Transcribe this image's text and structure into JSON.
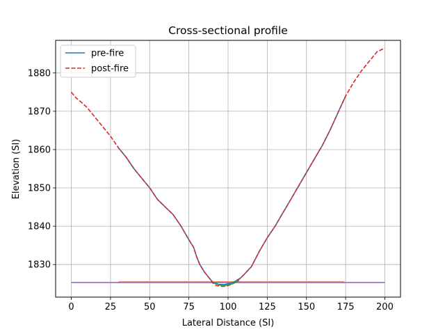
{
  "chart_data": {
    "type": "line",
    "title": "Cross-sectional profile",
    "xlabel": "Lateral Distance (SI)",
    "ylabel": "Elevation (SI)",
    "xlim": [
      -10,
      210
    ],
    "ylim": [
      1821.5,
      1888.5
    ],
    "xticks": [
      0,
      25,
      50,
      75,
      100,
      125,
      150,
      175,
      200
    ],
    "yticks": [
      1830,
      1840,
      1850,
      1860,
      1870,
      1880
    ],
    "grid": true,
    "legend_position": "top-left",
    "series": [
      {
        "name": "pre-fire",
        "color": "#1f77b4",
        "dash": "solid",
        "x": [
          30,
          35,
          40,
          45,
          50,
          55,
          60,
          65,
          70,
          75,
          78,
          80,
          82,
          85,
          88,
          90,
          92,
          94,
          96,
          98,
          100,
          102,
          104,
          106,
          108,
          110,
          115,
          120,
          125,
          130,
          135,
          140,
          145,
          150,
          155,
          160,
          165,
          170,
          175
        ],
        "y": [
          1860.5,
          1858,
          1855,
          1852.5,
          1850,
          1847,
          1845,
          1843,
          1840,
          1836.5,
          1834.5,
          1832,
          1830,
          1828,
          1826.5,
          1825.5,
          1825,
          1824.8,
          1824.8,
          1824.8,
          1825,
          1825.2,
          1825.5,
          1826,
          1826.5,
          1827.3,
          1829.5,
          1833.5,
          1837,
          1840,
          1843.5,
          1847,
          1850.5,
          1854,
          1857.5,
          1861,
          1865,
          1869.5,
          1874
        ]
      },
      {
        "name": "post-fire",
        "color": "#d62728",
        "dash": "dashed",
        "x": [
          0,
          3,
          6,
          10,
          15,
          20,
          25,
          30,
          35,
          40,
          45,
          50,
          55,
          60,
          65,
          70,
          75,
          78,
          80,
          82,
          85,
          88,
          90,
          92,
          94,
          96,
          98,
          100,
          102,
          104,
          106,
          108,
          110,
          115,
          120,
          125,
          130,
          135,
          140,
          145,
          150,
          155,
          160,
          165,
          170,
          175,
          180,
          185,
          190,
          195,
          200
        ],
        "y": [
          1875,
          1873.5,
          1872.5,
          1871,
          1868.5,
          1866,
          1863.5,
          1860.5,
          1858,
          1855,
          1852.5,
          1850,
          1847,
          1845,
          1843,
          1840,
          1836.5,
          1834.5,
          1832,
          1830,
          1828,
          1826.5,
          1825.3,
          1824.6,
          1824.4,
          1824.3,
          1824.3,
          1824.5,
          1824.8,
          1825.2,
          1825.8,
          1826.5,
          1827.3,
          1829.5,
          1833.5,
          1837,
          1840,
          1843.5,
          1847,
          1850.5,
          1854,
          1857.5,
          1861,
          1865,
          1869.5,
          1874,
          1877.5,
          1880.5,
          1883,
          1885.5,
          1886.5
        ]
      },
      {
        "name": "",
        "color": "#2ca02c",
        "dash": "solid",
        "x": [
          92,
          93,
          94,
          95,
          96,
          97,
          98,
          99,
          100,
          101,
          102,
          103,
          104,
          105,
          106,
          107
        ],
        "y": [
          1825.4,
          1825.0,
          1824.7,
          1824.6,
          1824.5,
          1824.5,
          1824.5,
          1824.6,
          1824.7,
          1824.8,
          1824.9,
          1825.0,
          1825.2,
          1825.4,
          1825.6,
          1825.8
        ]
      },
      {
        "name": "",
        "color": "#9467bd",
        "dash": "solid",
        "x": [
          0,
          200
        ],
        "y": [
          1825.3,
          1825.3
        ]
      },
      {
        "name": "",
        "color": "#e07b5a",
        "dash": "solid",
        "x": [
          30,
          174
        ],
        "y": [
          1825.5,
          1825.5
        ]
      }
    ]
  }
}
